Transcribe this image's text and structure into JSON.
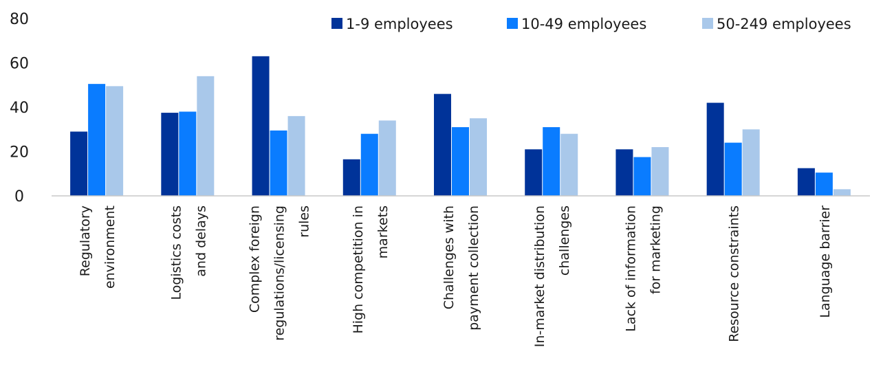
{
  "chart_data": {
    "type": "bar",
    "title": "",
    "xlabel": "",
    "ylabel": "",
    "ylim": [
      0,
      80
    ],
    "yticks": [
      0,
      20,
      40,
      60,
      80
    ],
    "grid": false,
    "legend_position": "top-right",
    "categories": [
      [
        "Regulatory",
        "environment"
      ],
      [
        "Logistics costs",
        "and delays"
      ],
      [
        "Complex foreign",
        "regulations/licensing",
        "rules"
      ],
      [
        "High competition in",
        "markets"
      ],
      [
        "Challenges with",
        "payment  collection"
      ],
      [
        "In-market distribution",
        "challenges"
      ],
      [
        "Lack of information",
        "for  marketing"
      ],
      [
        "Resource constraints"
      ],
      [
        "Language barrier"
      ]
    ],
    "series": [
      {
        "name": "1-9 employees",
        "color": "#003399",
        "values": [
          29,
          37.5,
          63,
          16.5,
          46,
          21,
          21,
          42,
          12.5
        ]
      },
      {
        "name": "10-49 employees",
        "color": "#0a7cff",
        "values": [
          50.5,
          38,
          29.5,
          28,
          31,
          31,
          17.5,
          24,
          10.5
        ]
      },
      {
        "name": "50-249 employees",
        "color": "#a9c8ea",
        "values": [
          49.5,
          54,
          36,
          34,
          35,
          28,
          22,
          30,
          3
        ]
      }
    ]
  }
}
